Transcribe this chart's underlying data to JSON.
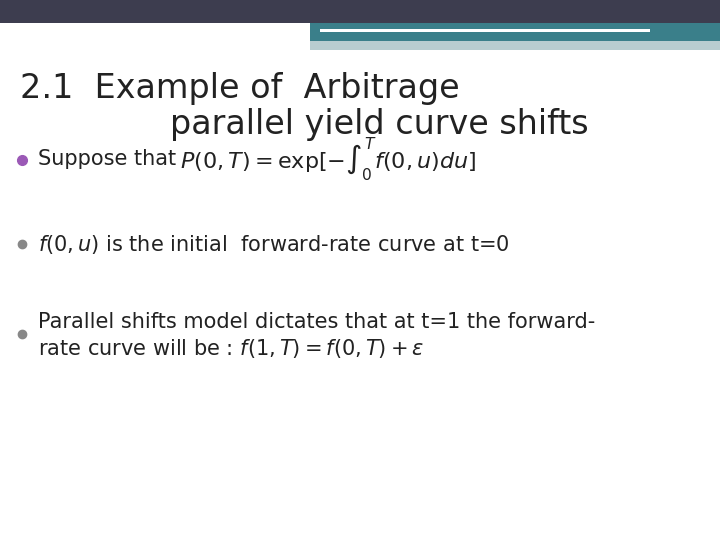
{
  "title_line1": "2.1  Example of  Arbitrage",
  "title_line2": "parallel yield curve shifts",
  "title_fontsize": 24,
  "title_color": "#222222",
  "background_color": "#ffffff",
  "header_bar_color1": "#3d3d4f",
  "header_bar_color2": "#3a7f8a",
  "header_bar_color3": "#b8cdd0",
  "white_line_color": "#ffffff",
  "bullet_color1": "#9b59b6",
  "bullet_color2": "#888888",
  "bullet_color3": "#888888",
  "text_fontsize": 15,
  "math_fontsize": 16
}
